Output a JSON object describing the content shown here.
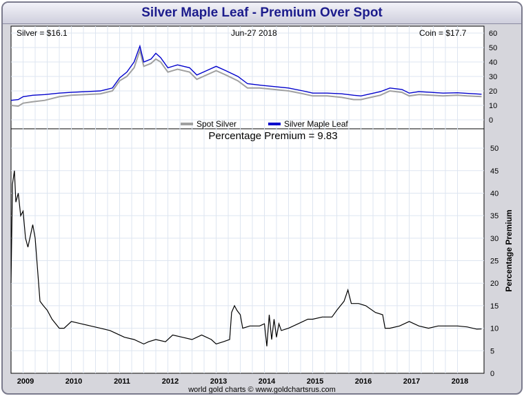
{
  "title": "Silver Maple Leaf - Premium Over Spot",
  "header": {
    "silver": "Silver = $16.1",
    "date": "Jun-27  2018",
    "coin": "Coin = $17.7"
  },
  "footer": "world gold charts © www.goldchartsrus.com",
  "colors": {
    "spot": "#a0a0a0",
    "coin": "#0000cc",
    "premium": "#000000",
    "grid": "#dde5f0",
    "title": "#1c1c8c"
  },
  "chart_data": [
    {
      "type": "line",
      "x_unit": "year",
      "xlim": [
        2008.75,
        2018.55
      ],
      "ylim": [
        0,
        60
      ],
      "yticks": [
        0,
        10,
        20,
        30,
        40,
        50,
        60
      ],
      "legend": {
        "position": "bottom-center"
      },
      "series": [
        {
          "name": "Spot Silver",
          "x": [
            2008.75,
            2008.9,
            2009.0,
            2009.2,
            2009.45,
            2009.75,
            2010.0,
            2010.3,
            2010.6,
            2010.85,
            2011.0,
            2011.15,
            2011.3,
            2011.42,
            2011.5,
            2011.65,
            2011.75,
            2011.85,
            2012.0,
            2012.2,
            2012.45,
            2012.6,
            2012.8,
            2013.0,
            2013.2,
            2013.45,
            2013.65,
            2013.9,
            2014.2,
            2014.5,
            2014.8,
            2015.0,
            2015.3,
            2015.6,
            2015.85,
            2016.0,
            2016.2,
            2016.4,
            2016.6,
            2016.85,
            2017.0,
            2017.2,
            2017.45,
            2017.7,
            2018.0,
            2018.2,
            2018.5
          ],
          "values": [
            10,
            9.5,
            11.5,
            12.5,
            13.5,
            16,
            17,
            17.5,
            18,
            20,
            27,
            30,
            36,
            48,
            37,
            39,
            42,
            40,
            33,
            35,
            33,
            28,
            31,
            34,
            31,
            27,
            22,
            22,
            21,
            20,
            18,
            16.5,
            16.5,
            15.5,
            14,
            14,
            15.5,
            17,
            20,
            19,
            16.5,
            17.5,
            17,
            16.5,
            17,
            16.5,
            16.1
          ]
        },
        {
          "name": "Silver Maple Leaf",
          "x": [
            2008.75,
            2008.9,
            2009.0,
            2009.2,
            2009.45,
            2009.75,
            2010.0,
            2010.3,
            2010.6,
            2010.85,
            2011.0,
            2011.15,
            2011.3,
            2011.42,
            2011.5,
            2011.65,
            2011.75,
            2011.85,
            2012.0,
            2012.2,
            2012.45,
            2012.6,
            2012.8,
            2013.0,
            2013.2,
            2013.45,
            2013.65,
            2013.9,
            2014.2,
            2014.5,
            2014.8,
            2015.0,
            2015.3,
            2015.6,
            2015.85,
            2016.0,
            2016.2,
            2016.4,
            2016.6,
            2016.85,
            2017.0,
            2017.2,
            2017.45,
            2017.7,
            2018.0,
            2018.2,
            2018.5
          ],
          "values": [
            13.5,
            14,
            16,
            17,
            17.5,
            18.5,
            19,
            19.5,
            20,
            22,
            29,
            33,
            40,
            51,
            40,
            42,
            46,
            43,
            36,
            38,
            36,
            31,
            34,
            37,
            34,
            30,
            25,
            24,
            23,
            22,
            20,
            18.5,
            18.5,
            18,
            17,
            16.5,
            18,
            19.5,
            22,
            21,
            18.5,
            19.5,
            19,
            18.5,
            18.7,
            18.3,
            17.7
          ]
        }
      ]
    },
    {
      "type": "line",
      "title": "Percentage Premium = 9.83",
      "ylabel": "Percentage Premium",
      "x_unit": "year",
      "xlim": [
        2008.75,
        2018.55
      ],
      "ylim": [
        0,
        52
      ],
      "yticks": [
        0,
        5,
        10,
        15,
        20,
        25,
        30,
        35,
        40,
        45,
        50
      ],
      "xticks": [
        "2009",
        "2010",
        "2011",
        "2012",
        "2013",
        "2014",
        "2015",
        "2016",
        "2017",
        "2018"
      ],
      "series": [
        {
          "name": "",
          "x": [
            2008.75,
            2008.78,
            2008.82,
            2008.85,
            2008.9,
            2008.95,
            2009.0,
            2009.05,
            2009.1,
            2009.2,
            2009.25,
            2009.3,
            2009.35,
            2009.42,
            2009.5,
            2009.6,
            2009.75,
            2009.85,
            2010.0,
            2010.2,
            2010.4,
            2010.6,
            2010.8,
            2010.9,
            2011.0,
            2011.1,
            2011.3,
            2011.5,
            2011.6,
            2011.75,
            2011.95,
            2012.1,
            2012.3,
            2012.5,
            2012.7,
            2012.9,
            2013.0,
            2013.15,
            2013.28,
            2013.32,
            2013.38,
            2013.43,
            2013.5,
            2013.55,
            2013.7,
            2013.9,
            2014.0,
            2014.05,
            2014.1,
            2014.15,
            2014.2,
            2014.25,
            2014.3,
            2014.35,
            2014.5,
            2014.7,
            2014.9,
            2015.0,
            2015.2,
            2015.4,
            2015.5,
            2015.65,
            2015.73,
            2015.8,
            2015.95,
            2016.1,
            2016.3,
            2016.45,
            2016.5,
            2016.6,
            2016.8,
            2017.0,
            2017.2,
            2017.4,
            2017.6,
            2017.8,
            2018.0,
            2018.2,
            2018.4,
            2018.5
          ],
          "values": [
            20,
            42,
            45,
            38,
            40,
            35,
            36,
            30,
            28,
            33,
            30,
            23,
            16,
            15,
            14,
            12,
            10,
            10,
            11.5,
            11,
            10.5,
            10,
            9.5,
            9,
            8.5,
            8,
            7.5,
            6.5,
            7,
            7.5,
            7,
            8.5,
            8,
            7.5,
            8.5,
            7.5,
            6.5,
            7,
            7.5,
            13.5,
            15,
            14,
            13,
            10,
            10.5,
            10.5,
            11,
            6,
            13,
            7.5,
            12,
            8,
            11,
            9.5,
            10,
            11,
            12,
            12,
            12.5,
            12.5,
            14,
            16,
            18.5,
            15.5,
            15.5,
            15,
            13.5,
            13,
            10,
            10,
            10.5,
            11.5,
            10.5,
            10,
            10.5,
            10.5,
            10.5,
            10.3,
            9.8,
            9.83
          ]
        }
      ]
    }
  ]
}
